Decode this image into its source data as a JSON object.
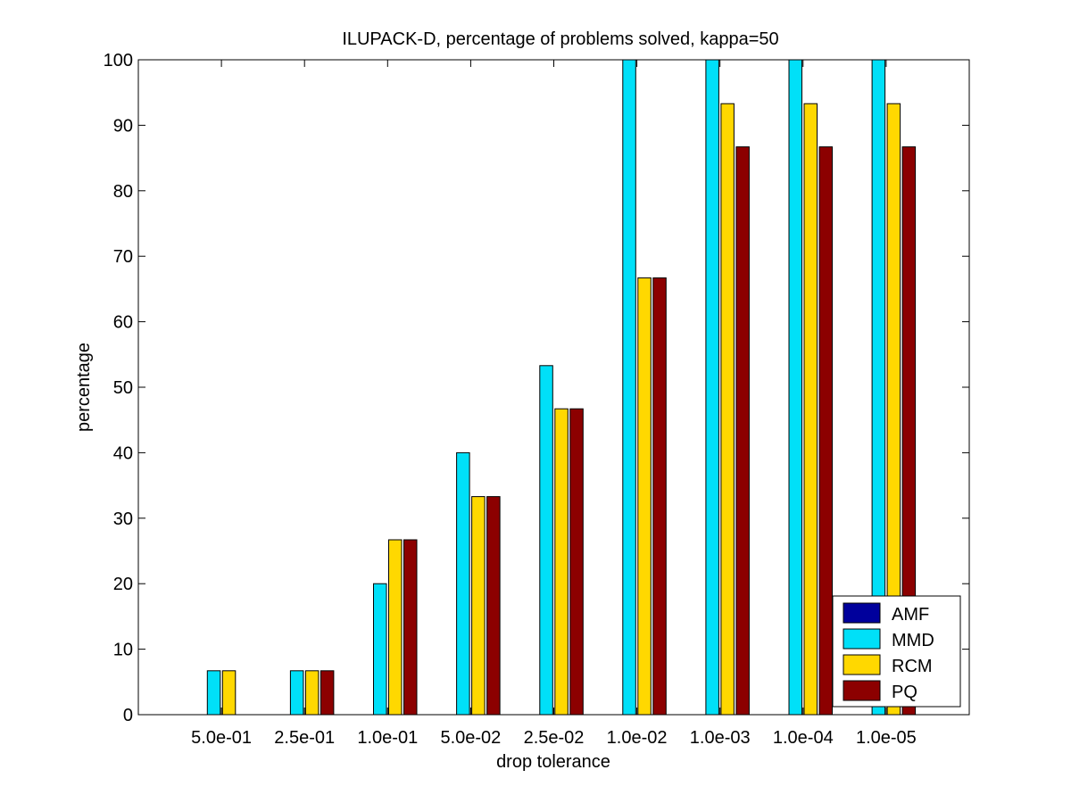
{
  "chart_data": {
    "type": "bar",
    "title": "ILUPACK-D, percentage of problems solved, kappa=50",
    "xlabel": "drop tolerance",
    "ylabel": "percentage",
    "ylim": [
      0,
      100
    ],
    "yticks": [
      0,
      10,
      20,
      30,
      40,
      50,
      60,
      70,
      80,
      90,
      100
    ],
    "grid": false,
    "legend_position": "bottom-right",
    "categories": [
      "5.0e-01",
      "2.5e-01",
      "1.0e-01",
      "5.0e-02",
      "2.5e-02",
      "1.0e-02",
      "1.0e-03",
      "1.0e-04",
      "1.0e-05"
    ],
    "series": [
      {
        "name": "AMF",
        "color": "#00009c",
        "values": [
          0,
          0,
          0,
          0,
          0,
          0,
          0,
          0,
          0
        ]
      },
      {
        "name": "MMD",
        "color": "#00e0f8",
        "values": [
          6.7,
          6.7,
          20,
          40,
          53.3,
          100,
          100,
          100,
          100
        ]
      },
      {
        "name": "RCM",
        "color": "#ffd800",
        "values": [
          6.7,
          6.7,
          26.7,
          33.3,
          46.7,
          66.7,
          93.3,
          93.3,
          93.3
        ]
      },
      {
        "name": "PQ",
        "color": "#8c0000",
        "values": [
          0,
          6.7,
          26.7,
          33.3,
          46.7,
          66.7,
          86.7,
          86.7,
          86.7
        ]
      }
    ]
  }
}
